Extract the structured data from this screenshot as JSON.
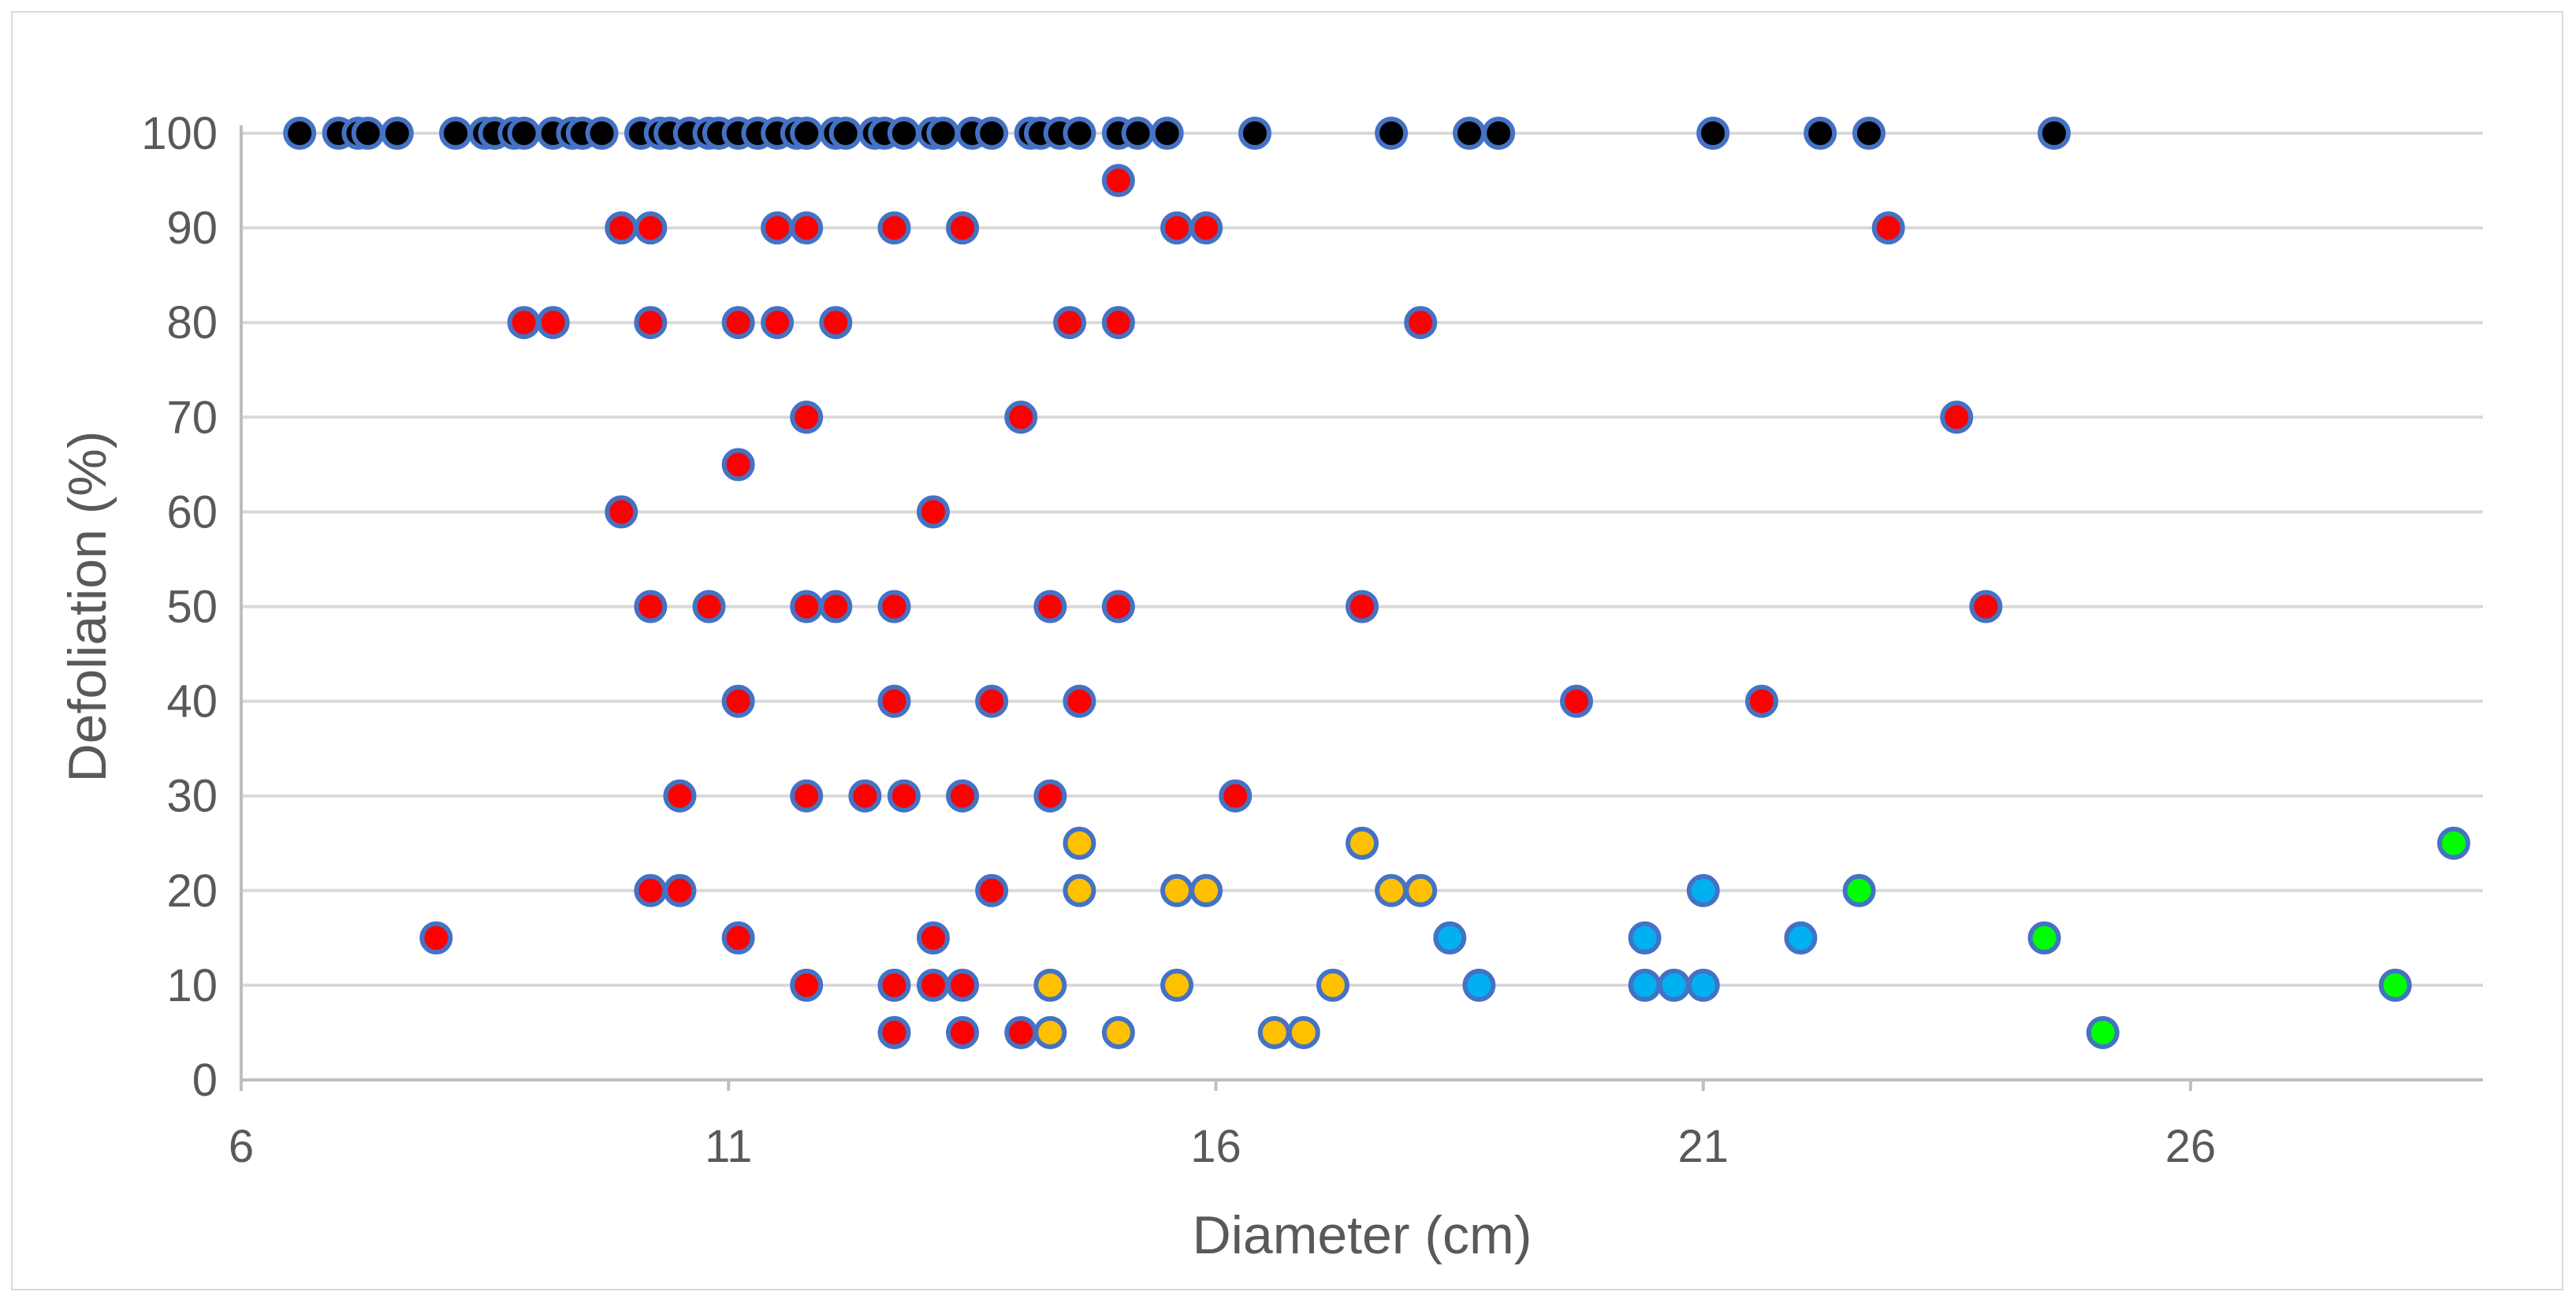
{
  "chart_data": {
    "type": "scatter",
    "title": "",
    "xlabel": "Diameter (cm)",
    "ylabel": "Defoliation (%)",
    "xlim": [
      6,
      29
    ],
    "ylim": [
      0,
      100
    ],
    "x_ticks": [
      6,
      11,
      16,
      21,
      26
    ],
    "y_ticks": [
      0,
      10,
      20,
      30,
      40,
      50,
      60,
      70,
      80,
      90,
      100
    ],
    "grid": true,
    "legend": "none",
    "series": [
      {
        "color": "#000000",
        "points": [
          [
            6.6,
            100
          ],
          [
            7.0,
            100
          ],
          [
            7.2,
            100
          ],
          [
            7.3,
            100
          ],
          [
            7.6,
            100
          ],
          [
            8.2,
            100
          ],
          [
            8.5,
            100
          ],
          [
            8.6,
            100
          ],
          [
            8.8,
            100
          ],
          [
            8.9,
            100
          ],
          [
            9.2,
            100
          ],
          [
            9.4,
            100
          ],
          [
            9.5,
            100
          ],
          [
            9.7,
            100
          ],
          [
            10.1,
            100
          ],
          [
            10.3,
            100
          ],
          [
            10.4,
            100
          ],
          [
            10.6,
            100
          ],
          [
            10.8,
            100
          ],
          [
            10.9,
            100
          ],
          [
            11.1,
            100
          ],
          [
            11.3,
            100
          ],
          [
            11.5,
            100
          ],
          [
            11.7,
            100
          ],
          [
            11.8,
            100
          ],
          [
            12.1,
            100
          ],
          [
            12.2,
            100
          ],
          [
            12.5,
            100
          ],
          [
            12.6,
            100
          ],
          [
            12.8,
            100
          ],
          [
            13.1,
            100
          ],
          [
            13.2,
            100
          ],
          [
            13.5,
            100
          ],
          [
            13.7,
            100
          ],
          [
            14.1,
            100
          ],
          [
            14.2,
            100
          ],
          [
            14.4,
            100
          ],
          [
            14.6,
            100
          ],
          [
            15.0,
            100
          ],
          [
            15.2,
            100
          ],
          [
            15.5,
            100
          ],
          [
            16.4,
            100
          ],
          [
            17.8,
            100
          ],
          [
            18.6,
            100
          ],
          [
            18.9,
            100
          ],
          [
            21.1,
            100
          ],
          [
            22.2,
            100
          ],
          [
            22.7,
            100
          ],
          [
            24.6,
            100
          ]
        ]
      },
      {
        "color": "#ff0000",
        "points": [
          [
            15.0,
            95
          ],
          [
            9.9,
            90
          ],
          [
            10.2,
            90
          ],
          [
            11.5,
            90
          ],
          [
            11.8,
            90
          ],
          [
            12.7,
            90
          ],
          [
            13.4,
            90
          ],
          [
            15.6,
            90
          ],
          [
            15.9,
            90
          ],
          [
            22.9,
            90
          ],
          [
            8.9,
            80
          ],
          [
            9.2,
            80
          ],
          [
            10.2,
            80
          ],
          [
            11.1,
            80
          ],
          [
            11.5,
            80
          ],
          [
            12.1,
            80
          ],
          [
            14.5,
            80
          ],
          [
            15.0,
            80
          ],
          [
            18.1,
            80
          ],
          [
            11.8,
            70
          ],
          [
            14.0,
            70
          ],
          [
            23.6,
            70
          ],
          [
            11.1,
            65
          ],
          [
            9.9,
            60
          ],
          [
            13.1,
            60
          ],
          [
            10.2,
            50
          ],
          [
            10.8,
            50
          ],
          [
            11.8,
            50
          ],
          [
            12.1,
            50
          ],
          [
            12.7,
            50
          ],
          [
            14.3,
            50
          ],
          [
            15.0,
            50
          ],
          [
            17.5,
            50
          ],
          [
            23.9,
            50
          ],
          [
            11.1,
            40
          ],
          [
            12.7,
            40
          ],
          [
            13.7,
            40
          ],
          [
            14.6,
            40
          ],
          [
            19.7,
            40
          ],
          [
            21.6,
            40
          ],
          [
            10.5,
            30
          ],
          [
            11.8,
            30
          ],
          [
            12.4,
            30
          ],
          [
            12.8,
            30
          ],
          [
            13.4,
            30
          ],
          [
            14.3,
            30
          ],
          [
            16.2,
            30
          ],
          [
            10.2,
            20
          ],
          [
            10.5,
            20
          ],
          [
            13.7,
            20
          ],
          [
            8.0,
            15
          ],
          [
            11.1,
            15
          ],
          [
            13.1,
            15
          ],
          [
            11.8,
            10
          ],
          [
            12.7,
            10
          ],
          [
            13.1,
            10
          ],
          [
            13.4,
            10
          ],
          [
            12.7,
            5
          ],
          [
            13.4,
            5
          ],
          [
            14.0,
            5
          ]
        ]
      },
      {
        "color": "#ffc000",
        "points": [
          [
            14.6,
            25
          ],
          [
            17.5,
            25
          ],
          [
            14.6,
            20
          ],
          [
            15.6,
            20
          ],
          [
            15.9,
            20
          ],
          [
            17.8,
            20
          ],
          [
            18.1,
            20
          ],
          [
            14.3,
            10
          ],
          [
            15.6,
            10
          ],
          [
            17.2,
            10
          ],
          [
            14.3,
            5
          ],
          [
            15.0,
            5
          ],
          [
            16.6,
            5
          ],
          [
            16.9,
            5
          ]
        ]
      },
      {
        "color": "#00b0f0",
        "points": [
          [
            21.0,
            20
          ],
          [
            18.4,
            15
          ],
          [
            20.4,
            15
          ],
          [
            22.0,
            15
          ],
          [
            18.7,
            10
          ],
          [
            20.4,
            10
          ],
          [
            20.7,
            10
          ],
          [
            21.0,
            10
          ]
        ]
      },
      {
        "color": "#00ff00",
        "points": [
          [
            28.7,
            25
          ],
          [
            22.6,
            20
          ],
          [
            24.5,
            15
          ],
          [
            28.1,
            10
          ],
          [
            25.1,
            5
          ]
        ]
      }
    ]
  }
}
